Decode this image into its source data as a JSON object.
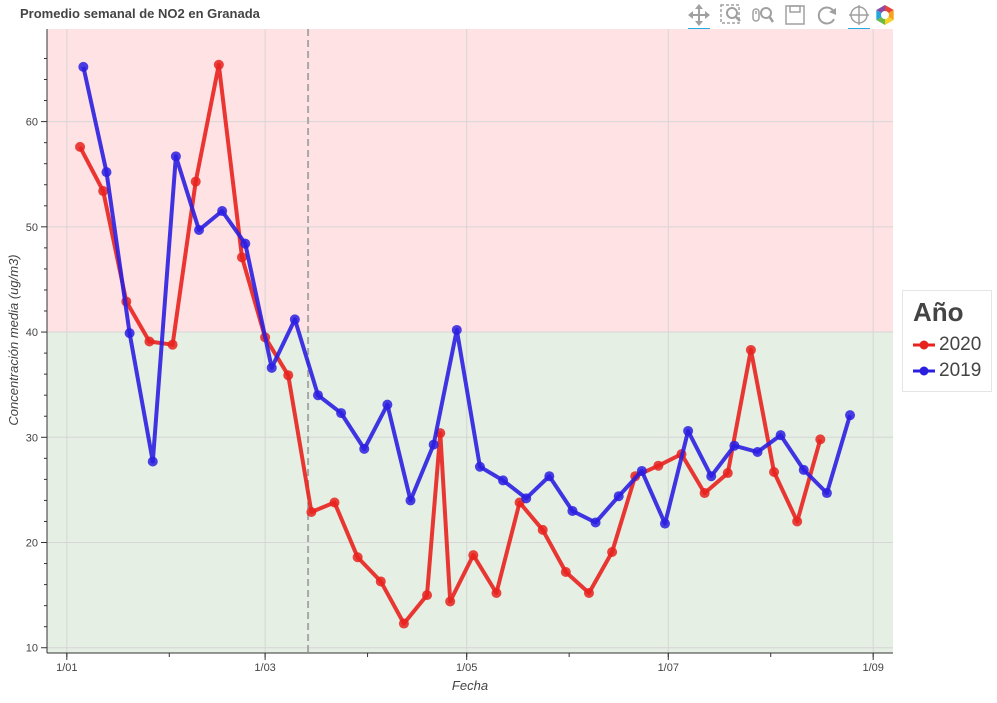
{
  "chart_data": {
    "type": "line",
    "title": "Promedio semanal de NO2 en Granada",
    "xlabel": "Fecha",
    "ylabel": "Concentración media (ug/m3)",
    "x_axis_type": "date",
    "x_ticks": [
      {
        "date": "2020-01-01",
        "label": "1/01"
      },
      {
        "date": "2020-03-01",
        "label": "1/03"
      },
      {
        "date": "2020-05-01",
        "label": "1/05"
      },
      {
        "date": "2020-07-01",
        "label": "1/07"
      },
      {
        "date": "2020-09-01",
        "label": "1/09"
      }
    ],
    "xlim": [
      "2019-12-26",
      "2020-09-07"
    ],
    "ylim": [
      9.5,
      68.8
    ],
    "y_ticks": [
      10,
      20,
      30,
      40,
      50,
      60
    ],
    "grid": true,
    "bands": [
      {
        "from": 40,
        "to": 68.8,
        "color": "#ffe2e4"
      },
      {
        "from": 9.5,
        "to": 40,
        "color": "#e5efe3"
      }
    ],
    "vline": {
      "date": "2020-03-14",
      "color": "#a8a8a8",
      "style": "dashed"
    },
    "legend": {
      "title": "Año",
      "position": "right"
    },
    "series": [
      {
        "name": "2020",
        "color": "#e8221f",
        "points": [
          {
            "x": "2020-01-05",
            "y": 57.6
          },
          {
            "x": "2020-01-12",
            "y": 53.4
          },
          {
            "x": "2020-01-19",
            "y": 42.9
          },
          {
            "x": "2020-01-26",
            "y": 39.1
          },
          {
            "x": "2020-02-02",
            "y": 38.8
          },
          {
            "x": "2020-02-09",
            "y": 54.3
          },
          {
            "x": "2020-02-16",
            "y": 65.4
          },
          {
            "x": "2020-02-23",
            "y": 47.1
          },
          {
            "x": "2020-03-01",
            "y": 39.5
          },
          {
            "x": "2020-03-08",
            "y": 35.9
          },
          {
            "x": "2020-03-15",
            "y": 22.9
          },
          {
            "x": "2020-03-22",
            "y": 23.8
          },
          {
            "x": "2020-03-29",
            "y": 18.6
          },
          {
            "x": "2020-04-05",
            "y": 16.3
          },
          {
            "x": "2020-04-12",
            "y": 12.3
          },
          {
            "x": "2020-04-19",
            "y": 15.0
          },
          {
            "x": "2020-04-23",
            "y": 30.4
          },
          {
            "x": "2020-04-26",
            "y": 14.4
          },
          {
            "x": "2020-05-03",
            "y": 18.8
          },
          {
            "x": "2020-05-10",
            "y": 15.2
          },
          {
            "x": "2020-05-17",
            "y": 23.8
          },
          {
            "x": "2020-05-24",
            "y": 21.2
          },
          {
            "x": "2020-05-31",
            "y": 17.2
          },
          {
            "x": "2020-06-07",
            "y": 15.2
          },
          {
            "x": "2020-06-14",
            "y": 19.1
          },
          {
            "x": "2020-06-21",
            "y": 26.3
          },
          {
            "x": "2020-06-28",
            "y": 27.3
          },
          {
            "x": "2020-07-05",
            "y": 28.4
          },
          {
            "x": "2020-07-12",
            "y": 24.7
          },
          {
            "x": "2020-07-19",
            "y": 26.6
          },
          {
            "x": "2020-07-26",
            "y": 38.3
          },
          {
            "x": "2020-08-02",
            "y": 26.7
          },
          {
            "x": "2020-08-09",
            "y": 22.0
          },
          {
            "x": "2020-08-16",
            "y": 29.8
          }
        ]
      },
      {
        "name": "2019",
        "color": "#2b1fe0",
        "points": [
          {
            "x": "2020-01-06",
            "y": 65.2
          },
          {
            "x": "2020-01-13",
            "y": 55.2
          },
          {
            "x": "2020-01-20",
            "y": 39.9
          },
          {
            "x": "2020-01-27",
            "y": 27.7
          },
          {
            "x": "2020-02-03",
            "y": 56.7
          },
          {
            "x": "2020-02-10",
            "y": 49.7
          },
          {
            "x": "2020-02-17",
            "y": 51.5
          },
          {
            "x": "2020-02-24",
            "y": 48.4
          },
          {
            "x": "2020-03-03",
            "y": 36.6
          },
          {
            "x": "2020-03-10",
            "y": 41.2
          },
          {
            "x": "2020-03-17",
            "y": 34.0
          },
          {
            "x": "2020-03-24",
            "y": 32.3
          },
          {
            "x": "2020-03-31",
            "y": 28.9
          },
          {
            "x": "2020-04-07",
            "y": 33.1
          },
          {
            "x": "2020-04-14",
            "y": 24.0
          },
          {
            "x": "2020-04-21",
            "y": 29.3
          },
          {
            "x": "2020-04-28",
            "y": 40.2
          },
          {
            "x": "2020-05-05",
            "y": 27.2
          },
          {
            "x": "2020-05-12",
            "y": 25.9
          },
          {
            "x": "2020-05-19",
            "y": 24.2
          },
          {
            "x": "2020-05-26",
            "y": 26.3
          },
          {
            "x": "2020-06-02",
            "y": 23.0
          },
          {
            "x": "2020-06-09",
            "y": 21.9
          },
          {
            "x": "2020-06-16",
            "y": 24.4
          },
          {
            "x": "2020-06-23",
            "y": 26.8
          },
          {
            "x": "2020-06-30",
            "y": 21.8
          },
          {
            "x": "2020-07-07",
            "y": 30.6
          },
          {
            "x": "2020-07-14",
            "y": 26.3
          },
          {
            "x": "2020-07-21",
            "y": 29.2
          },
          {
            "x": "2020-07-28",
            "y": 28.6
          },
          {
            "x": "2020-08-04",
            "y": 30.2
          },
          {
            "x": "2020-08-11",
            "y": 26.9
          },
          {
            "x": "2020-08-18",
            "y": 24.7
          },
          {
            "x": "2020-08-25",
            "y": 32.1
          }
        ]
      }
    ]
  },
  "toolbar": {
    "tools": [
      {
        "name": "pan-tool-icon",
        "active": true
      },
      {
        "name": "box-zoom-tool-icon",
        "active": false
      },
      {
        "name": "wheel-zoom-tool-icon",
        "active": false
      },
      {
        "name": "save-tool-icon",
        "active": false
      },
      {
        "name": "reset-tool-icon",
        "active": false
      },
      {
        "name": "crosshair-tool-icon",
        "active": true
      },
      {
        "name": "bokeh-logo-icon",
        "active": false
      }
    ]
  }
}
